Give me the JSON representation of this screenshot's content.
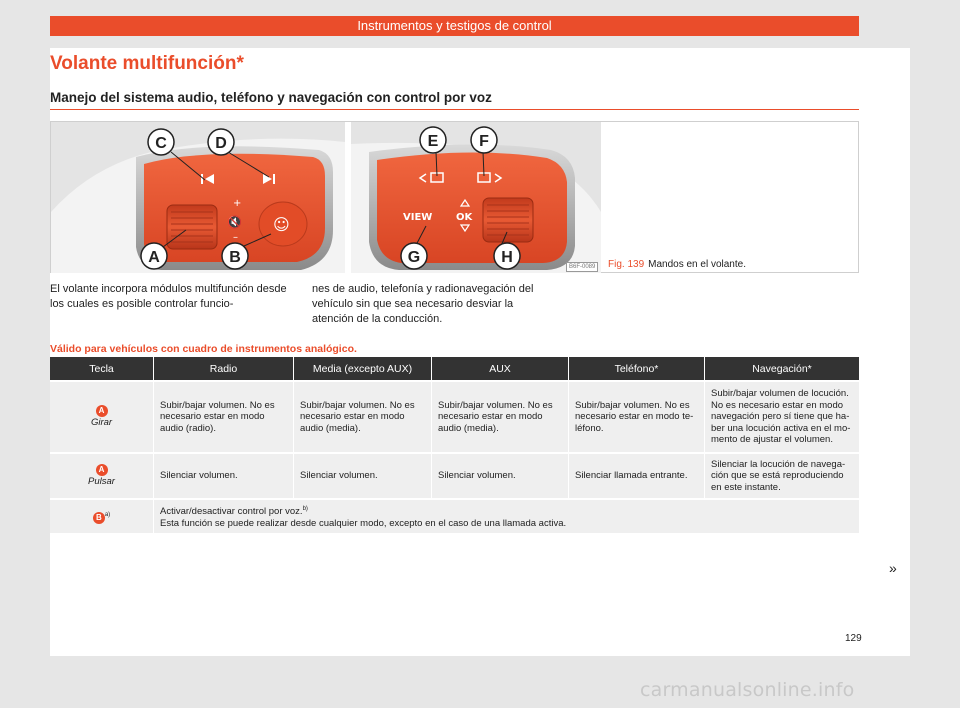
{
  "header": {
    "title": "Instrumentos y testigos de control"
  },
  "section": {
    "title": "Volante multifunción*",
    "subtitle": "Manejo del sistema audio, teléfono y navegación con control por voz"
  },
  "figure": {
    "number": "Fig. 139",
    "caption": "Mandos en el volante.",
    "code": "B6F-0089",
    "labels": {
      "c": "C",
      "d": "D",
      "a": "A",
      "b": "B",
      "e": "E",
      "f": "F",
      "g": "G",
      "h": "H"
    },
    "button_texts": {
      "view": "VIEW",
      "ok": "OK"
    },
    "colors": {
      "accent": "#ea4d2b",
      "control": "#e9552f"
    }
  },
  "body": {
    "left": "El volante incorpora módulos multifunción desde los cuales es posible controlar funcio-",
    "right": "nes de audio, telefonía y radionavegación del vehículo sin que sea necesario desviar la atención de la conducción."
  },
  "valid_note": "Válido para vehículos con cuadro de instrumentos analógico.",
  "table": {
    "headers": [
      "Tecla",
      "Radio",
      "Media (excepto AUX)",
      "AUX",
      "Teléfono*",
      "Navegación*"
    ],
    "row1": {
      "key": "A",
      "action": "Girar",
      "cells": [
        "Subir/bajar volumen. No es necesario estar en modo audio (radio).",
        "Subir/bajar volumen. No es necesario estar en modo audio (media).",
        "Subir/bajar volumen. No es necesario estar en modo audio (media).",
        "Subir/bajar volumen. No es necesario estar en modo te-léfono.",
        "Subir/bajar volumen de locución. No es necesario estar en modo navegación pero sí tiene que ha-ber una locución activa en el mo-mento de ajustar el volumen."
      ]
    },
    "row2": {
      "key": "A",
      "action": "Pulsar",
      "cells": [
        "Silenciar volumen.",
        "Silenciar volumen.",
        "Silenciar volumen.",
        "Silenciar llamada entrante.",
        "Silenciar la locución de navega-ción que se está reproduciendo en este instante."
      ]
    },
    "row3": {
      "key": "B",
      "key_sup": "a)",
      "line1": "Activar/desactivar control por voz.",
      "line1_sup": "b)",
      "line2": "Esta función se puede realizar desde cualquier modo, excepto en el caso de una llamada activa."
    }
  },
  "continue_mark": "»",
  "page_number": "129",
  "watermark": "carmanualsonline.info"
}
